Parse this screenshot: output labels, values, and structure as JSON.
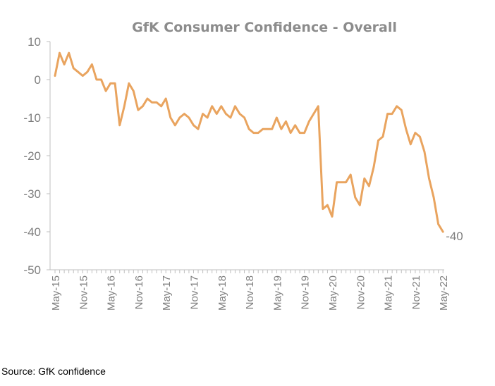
{
  "chart_data": {
    "type": "line",
    "title": "GfK Consumer Confidence - Overall",
    "xlabel": "",
    "ylabel": "",
    "ylim": [
      -50,
      10
    ],
    "yticks": [
      "10",
      "0",
      "-10",
      "-20",
      "-30",
      "-40",
      "-50"
    ],
    "ytick_values": [
      10,
      0,
      -10,
      -20,
      -30,
      -40,
      -50
    ],
    "xtick_labels": [
      "May-15",
      "Nov-15",
      "May-16",
      "Nov-16",
      "May-17",
      "Nov-17",
      "May-18",
      "Nov-18",
      "May-19",
      "Nov-19",
      "May-20",
      "Nov-20",
      "May-21",
      "Nov-21",
      "May-22"
    ],
    "grid": false,
    "legend": "none",
    "series": [
      {
        "color": "#e9a45f",
        "end_label": "-40",
        "x": [
          "May-15",
          "Jun-15",
          "Jul-15",
          "Aug-15",
          "Sep-15",
          "Oct-15",
          "Nov-15",
          "Dec-15",
          "Jan-16",
          "Feb-16",
          "Mar-16",
          "Apr-16",
          "May-16",
          "Jun-16",
          "Jul-16",
          "Aug-16",
          "Sep-16",
          "Oct-16",
          "Nov-16",
          "Dec-16",
          "Jan-17",
          "Feb-17",
          "Mar-17",
          "Apr-17",
          "May-17",
          "Jun-17",
          "Jul-17",
          "Aug-17",
          "Sep-17",
          "Oct-17",
          "Nov-17",
          "Dec-17",
          "Jan-18",
          "Feb-18",
          "Mar-18",
          "Apr-18",
          "May-18",
          "Jun-18",
          "Jul-18",
          "Aug-18",
          "Sep-18",
          "Oct-18",
          "Nov-18",
          "Dec-18",
          "Jan-19",
          "Feb-19",
          "Mar-19",
          "Apr-19",
          "May-19",
          "Jun-19",
          "Jul-19",
          "Aug-19",
          "Sep-19",
          "Oct-19",
          "Nov-19",
          "Dec-19",
          "Jan-20",
          "Feb-20",
          "Mar-20",
          "Apr-20",
          "May-20",
          "Jun-20",
          "Jul-20",
          "Aug-20",
          "Sep-20",
          "Oct-20",
          "Nov-20",
          "Dec-20",
          "Jan-21",
          "Feb-21",
          "Mar-21",
          "Apr-21",
          "May-21",
          "Jun-21",
          "Jul-21",
          "Aug-21",
          "Sep-21",
          "Oct-21",
          "Nov-21",
          "Dec-21",
          "Jan-22",
          "Feb-22",
          "Mar-22",
          "Apr-22",
          "May-22"
        ],
        "values": [
          1,
          7,
          4,
          7,
          3,
          2,
          1,
          2,
          4,
          0,
          0,
          -3,
          -1,
          -1,
          -12,
          -7,
          -1,
          -3,
          -8,
          -7,
          -5,
          -6,
          -6,
          -7,
          -5,
          -10,
          -12,
          -10,
          -9,
          -10,
          -12,
          -13,
          -9,
          -10,
          -7,
          -9,
          -7,
          -9,
          -10,
          -7,
          -9,
          -10,
          -13,
          -14,
          -14,
          -13,
          -13,
          -13,
          -10,
          -13,
          -11,
          -14,
          -12,
          -14,
          -14,
          -11,
          -9,
          -7,
          -34,
          -33,
          -36,
          -27,
          -27,
          -27,
          -25,
          -31,
          -33,
          -26,
          -28,
          -23,
          -16,
          -15,
          -9,
          -9,
          -7,
          -8,
          -13,
          -17,
          -14,
          -15,
          -19,
          -26,
          -31,
          -38,
          -40
        ]
      }
    ]
  },
  "source": "Source: GfK confidence"
}
